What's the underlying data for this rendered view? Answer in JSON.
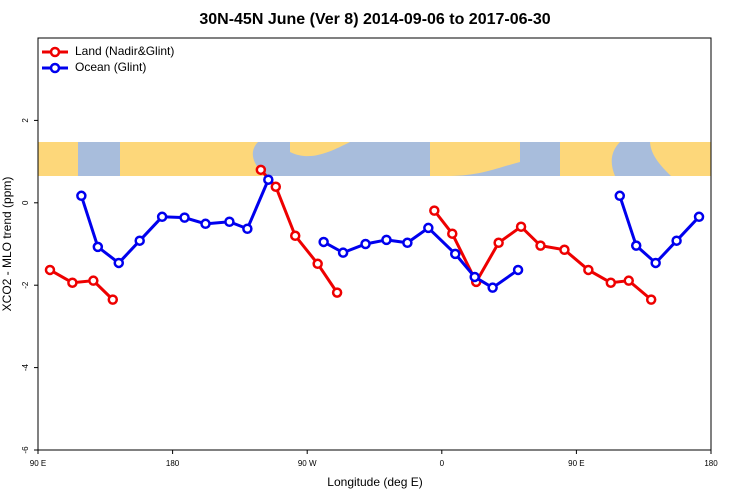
{
  "chart_data": {
    "type": "line",
    "title": "30N-45N June (Ver 8)   2014-09-06 to 2017-06-30",
    "x_label": "Longitude (deg E)",
    "y_label": "XCO2 - MLO trend (ppm)",
    "xlim": [
      90,
      540
    ],
    "xticks": [
      {
        "value": 90,
        "label": "90 E"
      },
      {
        "value": 180,
        "label": "180"
      },
      {
        "value": 270,
        "label": "90 W"
      },
      {
        "value": 360,
        "label": "0"
      },
      {
        "value": 450,
        "label": "90 E"
      },
      {
        "value": 540,
        "label": "180"
      }
    ],
    "ylim": [
      -6,
      4
    ],
    "yticks": [
      -6,
      -4,
      -2,
      0,
      2
    ],
    "legend": "topleft",
    "series": [
      {
        "name": "Land (Nadir&Glint)",
        "color": "#ee0000",
        "x": [
          98,
          113,
          127,
          140,
          null,
          239,
          249,
          262,
          277,
          290,
          null,
          355,
          367,
          383,
          398,
          413,
          426,
          442,
          458,
          473,
          485,
          500
        ],
        "values": [
          -1.63,
          -1.94,
          -1.89,
          -2.35,
          null,
          0.8,
          0.39,
          -0.8,
          -1.48,
          -2.18,
          null,
          -0.19,
          -0.75,
          -1.92,
          -0.97,
          -0.58,
          -1.04,
          -1.14,
          -1.63,
          -1.94,
          -1.89,
          -2.35
        ]
      },
      {
        "name": "Ocean (Glint)",
        "color": "#0000ee",
        "x": [
          119,
          130,
          144,
          158,
          173,
          188,
          202,
          218,
          230,
          244,
          null,
          281,
          294,
          309,
          323,
          337,
          351,
          369,
          382,
          394,
          411,
          null,
          479,
          490,
          503,
          517,
          532
        ],
        "values": [
          0.17,
          -1.07,
          -1.46,
          -0.92,
          -0.34,
          -0.36,
          -0.51,
          -0.46,
          -0.63,
          0.56,
          null,
          -0.95,
          -1.21,
          -1.0,
          -0.9,
          -0.97,
          -0.61,
          -1.24,
          -1.8,
          -2.06,
          -1.63,
          null,
          0.17,
          -1.04,
          -1.46,
          -0.92,
          -0.34
        ]
      }
    ]
  }
}
